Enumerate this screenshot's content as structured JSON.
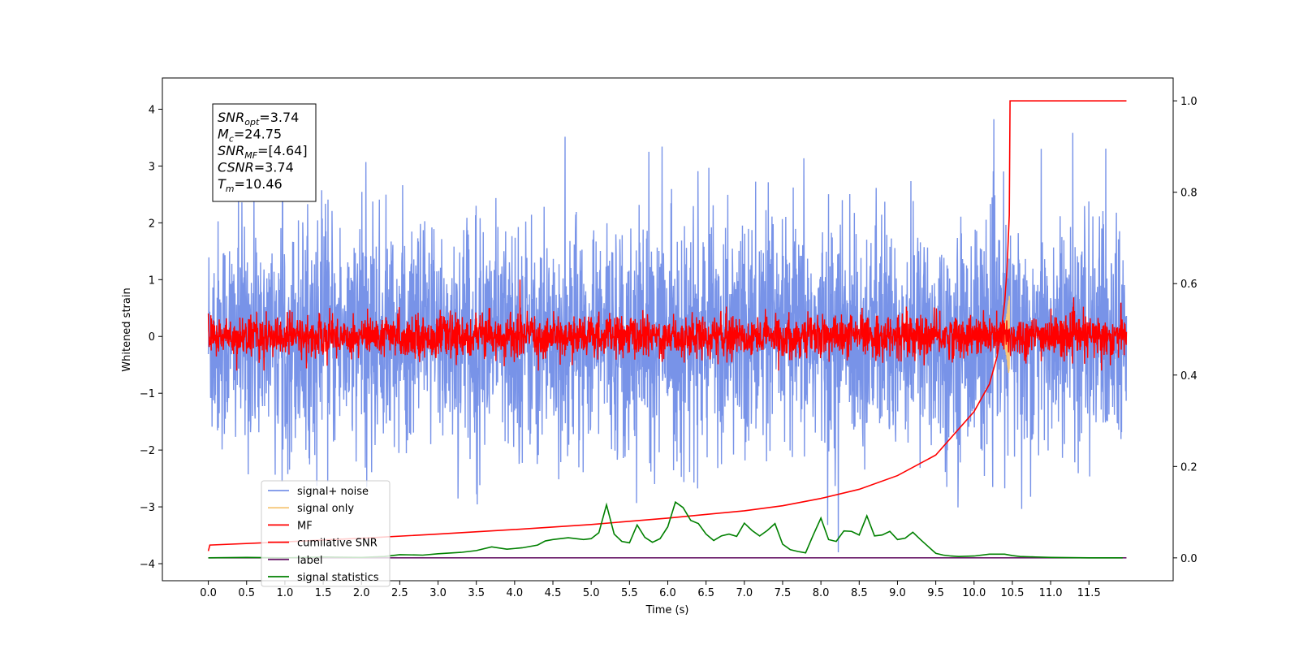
{
  "chart_data": {
    "type": "line",
    "xlabel": "Time (s)",
    "ylabel": "Whitened strain",
    "xlim": [
      -0.6,
      12.6
    ],
    "ylim": [
      -4.3,
      4.55
    ],
    "y2lim": [
      -0.05,
      1.05
    ],
    "xticks": [
      "0.0",
      "0.5",
      "1.0",
      "1.5",
      "2.0",
      "2.5",
      "3.0",
      "3.5",
      "4.0",
      "4.5",
      "5.0",
      "5.5",
      "6.0",
      "6.5",
      "7.0",
      "7.5",
      "8.0",
      "8.5",
      "9.0",
      "9.5",
      "10.0",
      "10.5",
      "11.0",
      "11.5"
    ],
    "yticks": [
      "−4",
      "−3",
      "−2",
      "−1",
      "0",
      "1",
      "2",
      "3",
      "4"
    ],
    "y2ticks": [
      "0.0",
      "0.2",
      "0.4",
      "0.6",
      "0.8",
      "1.0"
    ],
    "legend_placement": "lower-left",
    "annotation": [
      {
        "sym": "SNR",
        "sub": "opt",
        "val": "=3.74"
      },
      {
        "sym": "M",
        "sub": "c",
        "val": "=24.75"
      },
      {
        "sym": "SNR",
        "sub": "MF",
        "val": "=[4.64]"
      },
      {
        "sym": "CSNR",
        "sub": "",
        "val": "=3.74"
      },
      {
        "sym": "T",
        "sub": "m",
        "val": "=10.46"
      }
    ],
    "series": [
      {
        "name": "signal+ noise",
        "color": "#7893e8",
        "axis": "left",
        "style": "noise",
        "x_range": [
          0,
          11.99
        ],
        "amplitude_sd": 1.0
      },
      {
        "name": "signal only",
        "color": "#f6c77a",
        "axis": "left",
        "style": "chirp",
        "peak_time": 10.46,
        "peak_amplitude": 0.75
      },
      {
        "name": "MF",
        "color": "#ff0000",
        "axis": "left",
        "style": "noise",
        "x_range": [
          0,
          11.99
        ],
        "amplitude_sd": 0.18
      },
      {
        "name": "cumilative SNR",
        "color": "#ff0000",
        "axis": "right",
        "x": [
          0.0,
          0.02,
          1,
          2,
          3,
          4,
          5,
          6,
          7,
          7.5,
          8,
          8.5,
          9,
          9.5,
          10,
          10.2,
          10.3,
          10.35,
          10.4,
          10.43,
          10.46,
          10.47,
          11.99
        ],
        "values": [
          0.015,
          0.028,
          0.035,
          0.043,
          0.052,
          0.062,
          0.073,
          0.087,
          0.103,
          0.114,
          0.13,
          0.15,
          0.18,
          0.225,
          0.32,
          0.38,
          0.44,
          0.49,
          0.56,
          0.63,
          0.75,
          1.0,
          1.0
        ]
      },
      {
        "name": "label",
        "color": "#6a1b6a",
        "axis": "right",
        "x": [
          0,
          11.99
        ],
        "values": [
          0.0,
          0.0
        ]
      },
      {
        "name": "signal statistics",
        "color": "#008000",
        "axis": "right",
        "x": [
          0.0,
          0.5,
          1.0,
          1.5,
          2.0,
          2.3,
          2.5,
          2.8,
          3.0,
          3.3,
          3.5,
          3.7,
          3.9,
          4.1,
          4.3,
          4.4,
          4.5,
          4.7,
          4.9,
          5.0,
          5.1,
          5.2,
          5.3,
          5.4,
          5.5,
          5.6,
          5.7,
          5.8,
          5.9,
          6.0,
          6.1,
          6.2,
          6.3,
          6.4,
          6.5,
          6.6,
          6.7,
          6.8,
          6.9,
          7.0,
          7.1,
          7.2,
          7.3,
          7.4,
          7.5,
          7.6,
          7.7,
          7.8,
          7.9,
          8.0,
          8.1,
          8.2,
          8.3,
          8.4,
          8.5,
          8.6,
          8.7,
          8.8,
          8.9,
          9.0,
          9.1,
          9.2,
          9.3,
          9.4,
          9.5,
          9.6,
          9.7,
          9.8,
          10.0,
          10.2,
          10.4,
          10.5,
          10.6,
          10.8,
          11.0,
          11.5,
          11.94
        ],
        "values": [
          0.0,
          0.001,
          0.0,
          0.002,
          0.001,
          0.003,
          0.007,
          0.006,
          0.009,
          0.012,
          0.016,
          0.024,
          0.019,
          0.022,
          0.028,
          0.037,
          0.04,
          0.044,
          0.04,
          0.042,
          0.055,
          0.116,
          0.052,
          0.036,
          0.033,
          0.072,
          0.045,
          0.034,
          0.042,
          0.068,
          0.122,
          0.11,
          0.082,
          0.075,
          0.052,
          0.038,
          0.048,
          0.052,
          0.047,
          0.076,
          0.06,
          0.048,
          0.06,
          0.075,
          0.03,
          0.018,
          0.014,
          0.011,
          0.05,
          0.087,
          0.04,
          0.036,
          0.059,
          0.058,
          0.05,
          0.092,
          0.048,
          0.05,
          0.058,
          0.04,
          0.043,
          0.056,
          0.04,
          0.025,
          0.01,
          0.006,
          0.004,
          0.003,
          0.004,
          0.008,
          0.008,
          0.005,
          0.003,
          0.002,
          0.001,
          0.0,
          0.0
        ]
      }
    ]
  }
}
